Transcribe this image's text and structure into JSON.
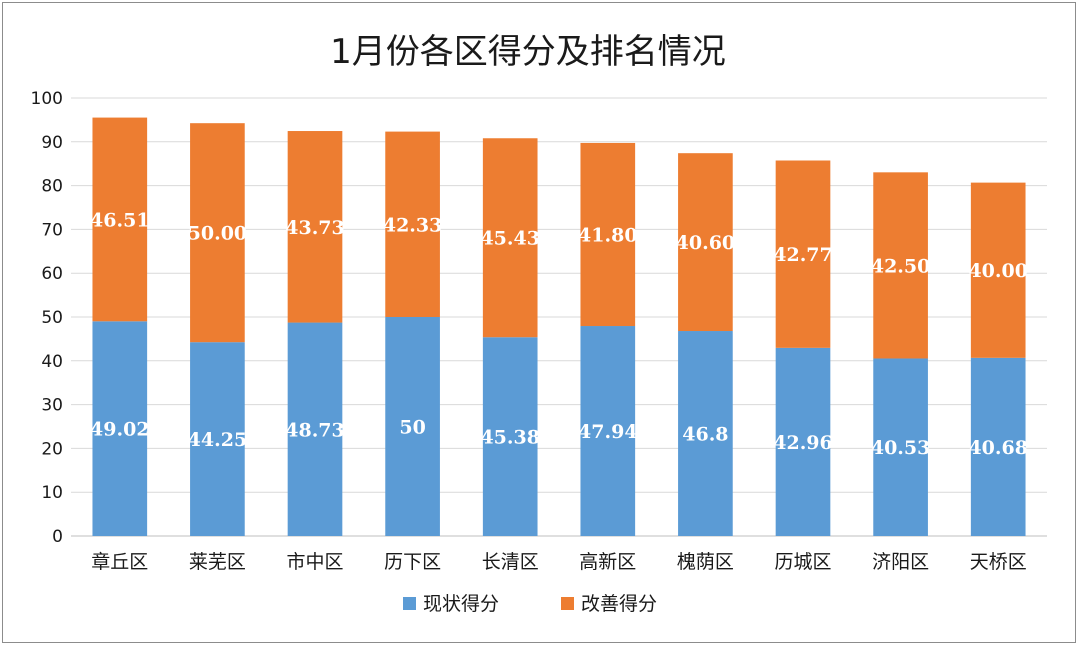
{
  "chart_data": {
    "type": "bar",
    "stacked": true,
    "title": "1月份各区得分及排名情况",
    "xlabel": "",
    "ylabel": "",
    "ylim": [
      0,
      100
    ],
    "yticks": [
      0,
      10,
      20,
      30,
      40,
      50,
      60,
      70,
      80,
      90,
      100
    ],
    "grid": true,
    "legend_position": "bottom",
    "categories": [
      "章丘区",
      "莱芜区",
      "市中区",
      "历下区",
      "长清区",
      "高新区",
      "槐荫区",
      "历城区",
      "济阳区",
      "天桥区"
    ],
    "series": [
      {
        "name": "现状得分",
        "color": "#5b9bd5",
        "values": [
          49.02,
          44.25,
          48.73,
          50,
          45.38,
          47.94,
          46.8,
          42.96,
          40.53,
          40.68
        ],
        "labels": [
          "49.02",
          "44.25",
          "48.73",
          "50",
          "45.38",
          "47.94",
          "46.8",
          "42.96",
          "40.53",
          "40.68"
        ]
      },
      {
        "name": "改善得分",
        "color": "#ed7d31",
        "values": [
          46.51,
          50.0,
          43.73,
          42.33,
          45.43,
          41.8,
          40.6,
          42.77,
          42.5,
          40.0
        ],
        "labels": [
          "46.51",
          "50.00",
          "43.73",
          "42.33",
          "45.43",
          "41.80",
          "40.60",
          "42.77",
          "42.50",
          "40.00"
        ]
      }
    ]
  }
}
